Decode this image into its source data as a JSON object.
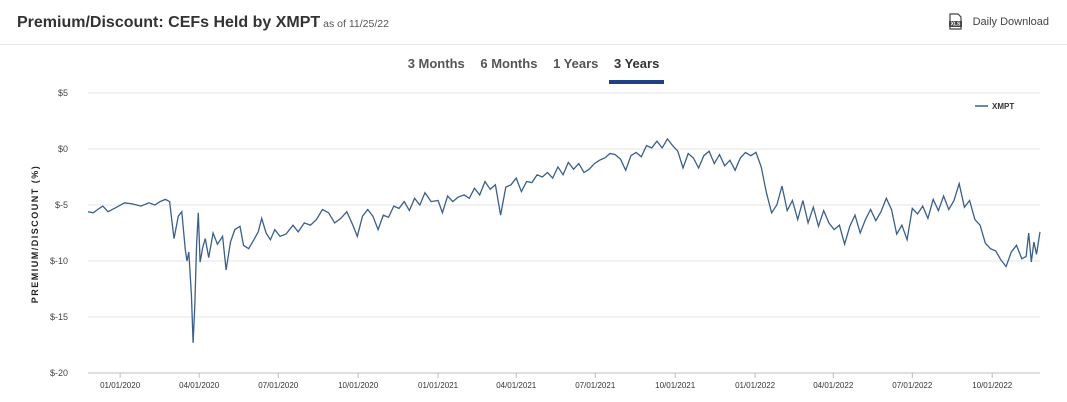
{
  "header": {
    "title": "Premium/Discount: CEFs Held by XMPT",
    "as_of": "as of 11/25/22",
    "download_label": "Daily Download",
    "download_icon": "xls-file-icon"
  },
  "tabs": [
    {
      "label": "3 Months",
      "active": false
    },
    {
      "label": "6 Months",
      "active": false
    },
    {
      "label": "1 Years",
      "active": false
    },
    {
      "label": "3 Years",
      "active": true
    }
  ],
  "colors": {
    "line": "#3b5f8a",
    "active_tab": "#1f3f86",
    "grid": "#e6e6e6"
  },
  "chart_data": {
    "type": "line",
    "title": "",
    "xlabel": "",
    "ylabel": "PREMIUM/DISCOUNT (%)",
    "ylim": [
      -20,
      5
    ],
    "yticks": [
      5,
      0,
      -5,
      -10,
      -15,
      -20
    ],
    "ytick_labels": [
      "$5",
      "$0",
      "$-5",
      "$-10",
      "$-15",
      "$-20"
    ],
    "xlim": [
      "2019-11-25",
      "2022-11-25"
    ],
    "xticks": [
      "2020-01-01",
      "2020-04-01",
      "2020-07-01",
      "2020-10-01",
      "2021-01-01",
      "2021-04-01",
      "2021-07-01",
      "2021-10-01",
      "2022-01-01",
      "2022-04-01",
      "2022-07-01",
      "2022-10-01"
    ],
    "xtick_labels": [
      "01/01/2020",
      "04/01/2020",
      "07/01/2020",
      "10/01/2020",
      "01/01/2021",
      "04/01/2021",
      "07/01/2021",
      "10/01/2021",
      "01/01/2022",
      "04/01/2022",
      "07/01/2022",
      "10/01/2022"
    ],
    "grid": true,
    "legend": "top-right",
    "series": [
      {
        "name": "XMPT",
        "points": [
          [
            "2019-11-25",
            -5.6
          ],
          [
            "2019-12-01",
            -5.7
          ],
          [
            "2019-12-08",
            -5.3
          ],
          [
            "2019-12-12",
            -5.1
          ],
          [
            "2019-12-18",
            -5.6
          ],
          [
            "2019-12-28",
            -5.2
          ],
          [
            "2020-01-06",
            -4.8
          ],
          [
            "2020-01-15",
            -4.9
          ],
          [
            "2020-01-25",
            -5.1
          ],
          [
            "2020-02-03",
            -4.8
          ],
          [
            "2020-02-10",
            -5.0
          ],
          [
            "2020-02-16",
            -4.7
          ],
          [
            "2020-02-22",
            -4.5
          ],
          [
            "2020-02-27",
            -4.7
          ],
          [
            "2020-03-03",
            -8.0
          ],
          [
            "2020-03-08",
            -6.0
          ],
          [
            "2020-03-12",
            -5.6
          ],
          [
            "2020-03-16",
            -9.0
          ],
          [
            "2020-03-18",
            -10.0
          ],
          [
            "2020-03-20",
            -9.2
          ],
          [
            "2020-03-23",
            -13.0
          ],
          [
            "2020-03-25",
            -17.3
          ],
          [
            "2020-03-27",
            -14.0
          ],
          [
            "2020-03-29",
            -8.5
          ],
          [
            "2020-03-31",
            -5.7
          ],
          [
            "2020-04-02",
            -10.1
          ],
          [
            "2020-04-05",
            -8.8
          ],
          [
            "2020-04-08",
            -8.0
          ],
          [
            "2020-04-12",
            -9.7
          ],
          [
            "2020-04-17",
            -7.5
          ],
          [
            "2020-04-22",
            -8.5
          ],
          [
            "2020-04-28",
            -7.8
          ],
          [
            "2020-05-02",
            -10.8
          ],
          [
            "2020-05-07",
            -8.3
          ],
          [
            "2020-05-12",
            -7.2
          ],
          [
            "2020-05-18",
            -6.9
          ],
          [
            "2020-05-22",
            -8.6
          ],
          [
            "2020-05-28",
            -8.9
          ],
          [
            "2020-06-03",
            -8.1
          ],
          [
            "2020-06-08",
            -7.4
          ],
          [
            "2020-06-12",
            -6.2
          ],
          [
            "2020-06-17",
            -7.5
          ],
          [
            "2020-06-22",
            -8.1
          ],
          [
            "2020-06-27",
            -7.2
          ],
          [
            "2020-07-03",
            -7.8
          ],
          [
            "2020-07-10",
            -7.6
          ],
          [
            "2020-07-18",
            -6.8
          ],
          [
            "2020-07-24",
            -7.4
          ],
          [
            "2020-07-31",
            -6.6
          ],
          [
            "2020-08-07",
            -6.8
          ],
          [
            "2020-08-14",
            -6.3
          ],
          [
            "2020-08-21",
            -5.4
          ],
          [
            "2020-08-28",
            -5.7
          ],
          [
            "2020-09-04",
            -6.6
          ],
          [
            "2020-09-11",
            -6.2
          ],
          [
            "2020-09-18",
            -5.6
          ],
          [
            "2020-09-25",
            -6.8
          ],
          [
            "2020-09-30",
            -7.8
          ],
          [
            "2020-10-06",
            -6.0
          ],
          [
            "2020-10-12",
            -5.4
          ],
          [
            "2020-10-18",
            -6.0
          ],
          [
            "2020-10-24",
            -7.2
          ],
          [
            "2020-10-30",
            -5.9
          ],
          [
            "2020-11-05",
            -6.1
          ],
          [
            "2020-11-11",
            -5.1
          ],
          [
            "2020-11-17",
            -5.3
          ],
          [
            "2020-11-23",
            -4.7
          ],
          [
            "2020-11-29",
            -5.5
          ],
          [
            "2020-12-05",
            -4.4
          ],
          [
            "2020-12-11",
            -5.0
          ],
          [
            "2020-12-17",
            -3.9
          ],
          [
            "2020-12-24",
            -4.7
          ],
          [
            "2021-01-01",
            -4.6
          ],
          [
            "2021-01-06",
            -5.7
          ],
          [
            "2021-01-12",
            -4.2
          ],
          [
            "2021-01-18",
            -4.7
          ],
          [
            "2021-01-24",
            -4.3
          ],
          [
            "2021-01-31",
            -4.1
          ],
          [
            "2021-02-06",
            -4.4
          ],
          [
            "2021-02-12",
            -3.5
          ],
          [
            "2021-02-18",
            -4.1
          ],
          [
            "2021-02-24",
            -2.9
          ],
          [
            "2021-03-02",
            -3.6
          ],
          [
            "2021-03-08",
            -3.2
          ],
          [
            "2021-03-14",
            -5.9
          ],
          [
            "2021-03-20",
            -3.4
          ],
          [
            "2021-03-26",
            -3.2
          ],
          [
            "2021-04-01",
            -2.6
          ],
          [
            "2021-04-07",
            -3.8
          ],
          [
            "2021-04-13",
            -2.9
          ],
          [
            "2021-04-19",
            -3.0
          ],
          [
            "2021-04-25",
            -2.3
          ],
          [
            "2021-05-01",
            -2.5
          ],
          [
            "2021-05-07",
            -2.1
          ],
          [
            "2021-05-13",
            -2.6
          ],
          [
            "2021-05-19",
            -1.6
          ],
          [
            "2021-05-25",
            -2.3
          ],
          [
            "2021-05-31",
            -1.2
          ],
          [
            "2021-06-06",
            -1.8
          ],
          [
            "2021-06-12",
            -1.3
          ],
          [
            "2021-06-18",
            -2.1
          ],
          [
            "2021-06-24",
            -1.8
          ],
          [
            "2021-06-30",
            -1.3
          ],
          [
            "2021-07-06",
            -1.0
          ],
          [
            "2021-07-12",
            -0.8
          ],
          [
            "2021-07-18",
            -0.4
          ],
          [
            "2021-07-24",
            -0.5
          ],
          [
            "2021-07-30",
            -0.9
          ],
          [
            "2021-08-05",
            -1.9
          ],
          [
            "2021-08-11",
            -0.6
          ],
          [
            "2021-08-17",
            -0.3
          ],
          [
            "2021-08-23",
            -0.7
          ],
          [
            "2021-08-29",
            0.3
          ],
          [
            "2021-09-04",
            0.1
          ],
          [
            "2021-09-10",
            0.7
          ],
          [
            "2021-09-16",
            0.1
          ],
          [
            "2021-09-22",
            0.9
          ],
          [
            "2021-09-28",
            0.3
          ],
          [
            "2021-10-04",
            -0.2
          ],
          [
            "2021-10-10",
            -1.7
          ],
          [
            "2021-10-16",
            -0.4
          ],
          [
            "2021-10-22",
            -0.8
          ],
          [
            "2021-10-28",
            -1.7
          ],
          [
            "2021-11-03",
            -0.6
          ],
          [
            "2021-11-09",
            -0.2
          ],
          [
            "2021-11-15",
            -1.3
          ],
          [
            "2021-11-21",
            -0.5
          ],
          [
            "2021-11-27",
            -1.5
          ],
          [
            "2021-12-03",
            -1.0
          ],
          [
            "2021-12-09",
            -1.9
          ],
          [
            "2021-12-15",
            -0.8
          ],
          [
            "2021-12-21",
            -0.3
          ],
          [
            "2021-12-27",
            -0.6
          ],
          [
            "2022-01-02",
            -0.3
          ],
          [
            "2022-01-08",
            -1.6
          ],
          [
            "2022-01-14",
            -3.9
          ],
          [
            "2022-01-20",
            -5.7
          ],
          [
            "2022-01-26",
            -5.0
          ],
          [
            "2022-02-01",
            -3.3
          ],
          [
            "2022-02-07",
            -5.5
          ],
          [
            "2022-02-13",
            -4.6
          ],
          [
            "2022-02-19",
            -6.3
          ],
          [
            "2022-02-25",
            -4.6
          ],
          [
            "2022-03-03",
            -6.6
          ],
          [
            "2022-03-09",
            -5.2
          ],
          [
            "2022-03-15",
            -6.9
          ],
          [
            "2022-03-21",
            -5.5
          ],
          [
            "2022-03-27",
            -6.6
          ],
          [
            "2022-04-02",
            -7.2
          ],
          [
            "2022-04-08",
            -6.8
          ],
          [
            "2022-04-14",
            -8.5
          ],
          [
            "2022-04-20",
            -6.9
          ],
          [
            "2022-04-26",
            -5.9
          ],
          [
            "2022-05-02",
            -7.5
          ],
          [
            "2022-05-08",
            -6.3
          ],
          [
            "2022-05-14",
            -5.4
          ],
          [
            "2022-05-20",
            -6.4
          ],
          [
            "2022-05-26",
            -5.6
          ],
          [
            "2022-06-01",
            -4.4
          ],
          [
            "2022-06-07",
            -5.4
          ],
          [
            "2022-06-13",
            -7.6
          ],
          [
            "2022-06-19",
            -6.8
          ],
          [
            "2022-06-25",
            -8.1
          ],
          [
            "2022-07-01",
            -5.3
          ],
          [
            "2022-07-07",
            -5.8
          ],
          [
            "2022-07-13",
            -5.1
          ],
          [
            "2022-07-19",
            -6.2
          ],
          [
            "2022-07-25",
            -4.5
          ],
          [
            "2022-07-31",
            -5.5
          ],
          [
            "2022-08-06",
            -4.2
          ],
          [
            "2022-08-12",
            -5.4
          ],
          [
            "2022-08-18",
            -4.6
          ],
          [
            "2022-08-24",
            -3.1
          ],
          [
            "2022-08-30",
            -5.2
          ],
          [
            "2022-09-05",
            -4.6
          ],
          [
            "2022-09-11",
            -6.3
          ],
          [
            "2022-09-17",
            -6.8
          ],
          [
            "2022-09-23",
            -8.4
          ],
          [
            "2022-09-29",
            -8.9
          ],
          [
            "2022-10-05",
            -9.1
          ],
          [
            "2022-10-11",
            -9.9
          ],
          [
            "2022-10-17",
            -10.5
          ],
          [
            "2022-10-23",
            -9.2
          ],
          [
            "2022-10-29",
            -8.6
          ],
          [
            "2022-11-04",
            -9.8
          ],
          [
            "2022-11-09",
            -9.6
          ],
          [
            "2022-11-12",
            -7.5
          ],
          [
            "2022-11-15",
            -10.1
          ],
          [
            "2022-11-18",
            -8.3
          ],
          [
            "2022-11-21",
            -9.4
          ],
          [
            "2022-11-25",
            -7.4
          ]
        ]
      }
    ]
  }
}
